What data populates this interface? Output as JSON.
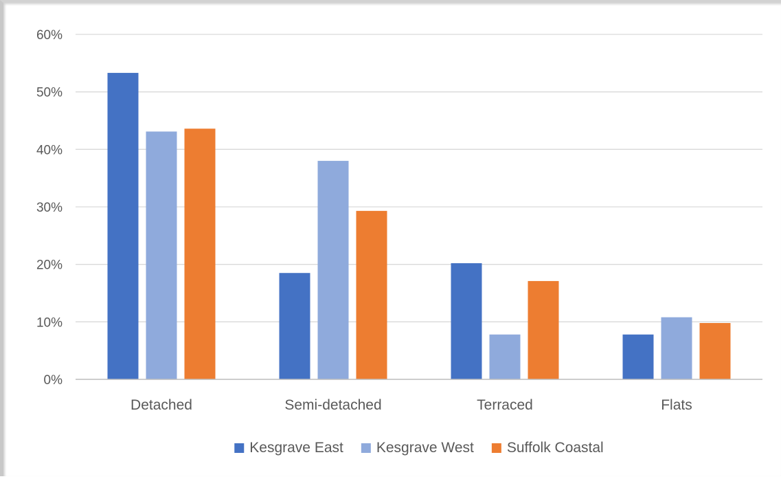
{
  "chart_data": {
    "type": "bar",
    "title": "",
    "xlabel": "",
    "ylabel": "",
    "categories": [
      "Detached",
      "Semi-detached",
      "Terraced",
      "Flats"
    ],
    "series": [
      {
        "name": "Kesgrave East",
        "color": "#4472c4",
        "values": [
          53.3,
          18.5,
          20.2,
          7.8
        ]
      },
      {
        "name": "Kesgrave West",
        "color": "#8faadc",
        "values": [
          43.1,
          38.0,
          7.8,
          10.8
        ]
      },
      {
        "name": "Suffolk Coastal",
        "color": "#ed7d31",
        "values": [
          43.6,
          29.3,
          17.1,
          9.8
        ]
      }
    ],
    "ylim": [
      0,
      60
    ],
    "yticks": [
      "0%",
      "10%",
      "20%",
      "30%",
      "40%",
      "50%",
      "60%"
    ],
    "grid": true,
    "legend_position": "bottom"
  }
}
